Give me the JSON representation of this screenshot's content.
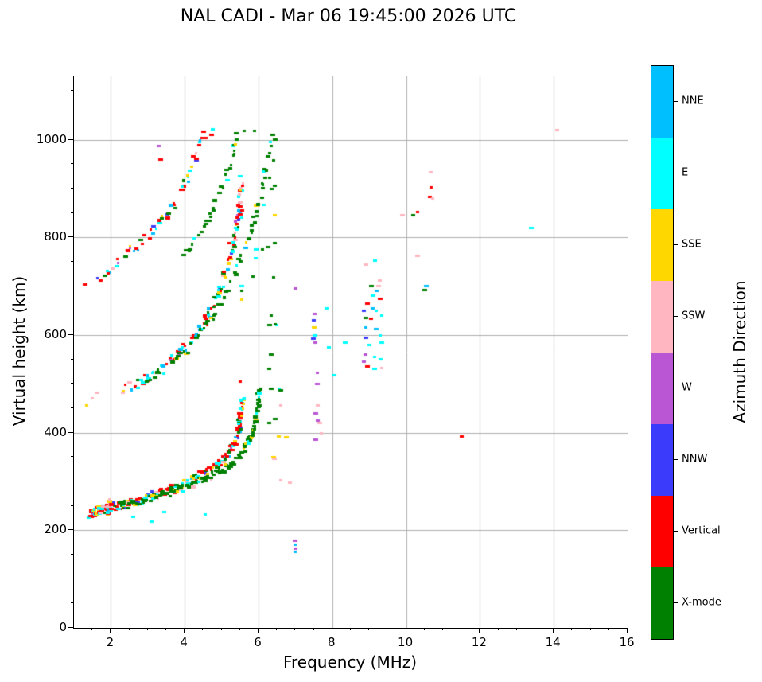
{
  "chart_data": {
    "type": "scatter",
    "title": "NAL CADI - Mar 06 19:45:00 2026 UTC",
    "xlabel": "Frequency (MHz)",
    "ylabel": "Virtual height (km)",
    "xlim": [
      1,
      16
    ],
    "ylim": [
      0,
      1130
    ],
    "xticks": [
      2,
      4,
      6,
      8,
      10,
      12,
      14,
      16
    ],
    "yticks": [
      0,
      200,
      400,
      600,
      800,
      1000
    ],
    "x_minor_step": 0.5,
    "y_minor_step": 50,
    "grid": true,
    "grid_color": "#b0b0b0",
    "background": "#ffffff",
    "colorbar": {
      "label": "Azimuth Direction",
      "categories": [
        {
          "key": "N",
          "label": "NNE",
          "color": "#00bfff"
        },
        {
          "key": "E",
          "label": "E",
          "color": "#00ffff"
        },
        {
          "key": "S",
          "label": "SSE",
          "color": "#ffd700"
        },
        {
          "key": "P",
          "label": "SSW",
          "color": "#ffb6c1"
        },
        {
          "key": "W",
          "label": "W",
          "color": "#ba55d3"
        },
        {
          "key": "B",
          "label": "NNW",
          "color": "#3b3bfc"
        },
        {
          "key": "R",
          "label": "Vertical",
          "color": "#ff0000"
        },
        {
          "key": "G",
          "label": "X-mode",
          "color": "#008000"
        }
      ]
    },
    "traces": [
      {
        "name": "first-hop-o-mode",
        "thickness": 9,
        "step": 2.6,
        "p": 0.85,
        "per": 2.2,
        "colors": {
          "R": 0.3,
          "E": 0.2,
          "S": 0.11,
          "P": 0.1,
          "N": 0.07,
          "B": 0.05,
          "W": 0.02,
          "G": 0.15
        },
        "anchors": [
          [
            1.45,
            237
          ],
          [
            1.7,
            240
          ],
          [
            1.95,
            247
          ],
          [
            2.4,
            252
          ],
          [
            2.8,
            262
          ],
          [
            3.2,
            272
          ],
          [
            3.6,
            283
          ],
          [
            4.0,
            296
          ],
          [
            4.4,
            310
          ],
          [
            4.8,
            328
          ],
          [
            5.1,
            348
          ],
          [
            5.3,
            370
          ],
          [
            5.45,
            402
          ],
          [
            5.52,
            440
          ],
          [
            5.57,
            475
          ]
        ]
      },
      {
        "name": "first-hop-x-mode",
        "thickness": 7,
        "step": 3,
        "p": 0.8,
        "per": 1.8,
        "colors": {
          "G": 0.82,
          "E": 0.08,
          "S": 0.06,
          "P": 0.04
        },
        "anchors": [
          [
            2.2,
            250
          ],
          [
            2.8,
            260
          ],
          [
            3.4,
            272
          ],
          [
            3.9,
            284
          ],
          [
            4.4,
            298
          ],
          [
            4.9,
            318
          ],
          [
            5.3,
            338
          ],
          [
            5.6,
            362
          ],
          [
            5.85,
            398
          ],
          [
            5.98,
            448
          ],
          [
            6.03,
            498
          ]
        ]
      },
      {
        "name": "second-hop-o-mode",
        "thickness": 9,
        "step": 3.2,
        "p": 0.75,
        "per": 1.6,
        "colors": {
          "R": 0.32,
          "E": 0.2,
          "N": 0.09,
          "P": 0.12,
          "S": 0.08,
          "G": 0.12,
          "W": 0.03,
          "B": 0.04
        },
        "anchors": [
          [
            2.35,
            490
          ],
          [
            2.7,
            500
          ],
          [
            3.1,
            518
          ],
          [
            3.5,
            542
          ],
          [
            3.9,
            566
          ],
          [
            4.2,
            590
          ],
          [
            4.5,
            620
          ],
          [
            4.75,
            655
          ],
          [
            4.95,
            690
          ],
          [
            5.15,
            732
          ],
          [
            5.3,
            778
          ],
          [
            5.4,
            822
          ],
          [
            5.5,
            870
          ],
          [
            5.55,
            908
          ]
        ]
      },
      {
        "name": "second-hop-x-mode",
        "thickness": 7,
        "step": 4.5,
        "p": 0.72,
        "per": 1,
        "colors": {
          "G": 0.8,
          "E": 0.08,
          "S": 0.07,
          "N": 0.05
        },
        "anchors": [
          [
            3.0,
            505
          ],
          [
            3.5,
            532
          ],
          [
            4.0,
            562
          ],
          [
            4.4,
            596
          ],
          [
            4.8,
            642
          ],
          [
            5.1,
            682
          ],
          [
            5.4,
            732
          ],
          [
            5.7,
            792
          ],
          [
            5.95,
            852
          ],
          [
            6.15,
            922
          ],
          [
            6.3,
            978
          ],
          [
            6.4,
            1018
          ]
        ]
      },
      {
        "name": "third-hop-o-mode",
        "thickness": 9,
        "step": 4,
        "p": 0.7,
        "per": 1.4,
        "colors": {
          "R": 0.3,
          "N": 0.17,
          "E": 0.18,
          "P": 0.08,
          "S": 0.09,
          "G": 0.08,
          "B": 0.06,
          "W": 0.04
        },
        "anchors": [
          [
            1.5,
            706
          ],
          [
            1.9,
            730
          ],
          [
            2.3,
            756
          ],
          [
            2.7,
            782
          ],
          [
            3.0,
            802
          ],
          [
            3.3,
            826
          ],
          [
            3.6,
            856
          ],
          [
            3.85,
            886
          ],
          [
            4.05,
            916
          ],
          [
            4.2,
            946
          ],
          [
            4.35,
            976
          ],
          [
            4.5,
            1002
          ],
          [
            4.6,
            1016
          ]
        ]
      },
      {
        "name": "third-hop-x-mode",
        "thickness": 6,
        "step": 4.5,
        "p": 0.8,
        "per": 1,
        "colors": {
          "G": 0.88,
          "S": 0.06,
          "E": 0.06
        },
        "anchors": [
          [
            4.0,
            762
          ],
          [
            4.3,
            792
          ],
          [
            4.6,
            832
          ],
          [
            4.85,
            872
          ],
          [
            5.05,
            906
          ],
          [
            5.25,
            952
          ],
          [
            5.35,
            986
          ],
          [
            5.45,
            1016
          ]
        ]
      },
      {
        "name": "start-blob",
        "thickness": 7,
        "step": 1.6,
        "p": 0.9,
        "per": 2.5,
        "colors": {
          "R": 0.28,
          "E": 0.22,
          "S": 0.14,
          "P": 0.1,
          "N": 0.1,
          "B": 0.08,
          "W": 0.03,
          "G": 0.05
        },
        "anchors": [
          [
            1.45,
            233
          ],
          [
            1.62,
            238
          ],
          [
            1.78,
            242
          ]
        ]
      },
      {
        "name": "two-mhz-blob",
        "thickness": 10,
        "step": 1.2,
        "p": 0.95,
        "per": 2.5,
        "colors": {
          "R": 0.28,
          "E": 0.2,
          "S": 0.16,
          "P": 0.14,
          "N": 0.08,
          "B": 0.06,
          "W": 0.03,
          "G": 0.05
        },
        "anchors": [
          [
            1.93,
            240
          ],
          [
            2.0,
            256
          ]
        ]
      }
    ],
    "features": [
      [
        1.35,
        455,
        "S"
      ],
      [
        1.5,
        470,
        "P"
      ],
      [
        1.62,
        482,
        "P"
      ],
      [
        1.3,
        703,
        "R"
      ],
      [
        2.6,
        228,
        "E"
      ],
      [
        3.1,
        218,
        "E"
      ],
      [
        3.45,
        238,
        "E"
      ],
      [
        4.55,
        232,
        "E"
      ],
      [
        3.3,
        987,
        "W"
      ],
      [
        3.35,
        960,
        "R"
      ],
      [
        5.5,
        505,
        "R"
      ],
      [
        5.2,
        789,
        "R"
      ],
      [
        4.73,
        1010,
        "R"
      ],
      [
        4.75,
        1021,
        "E"
      ],
      [
        5.38,
        990,
        "S"
      ],
      [
        5.4,
        1000,
        "G"
      ],
      [
        5.55,
        840,
        "E"
      ],
      [
        5.55,
        855,
        "R"
      ],
      [
        5.57,
        905,
        "R"
      ],
      [
        5.5,
        925,
        "E"
      ],
      [
        5.54,
        690,
        "G"
      ],
      [
        5.54,
        700,
        "E"
      ],
      [
        5.54,
        672,
        "S"
      ],
      [
        5.62,
        1019,
        "G"
      ],
      [
        5.9,
        1019,
        "G"
      ],
      [
        5.85,
        720,
        "G"
      ],
      [
        5.92,
        758,
        "E"
      ],
      [
        5.93,
        776,
        "E"
      ],
      [
        6.1,
        775,
        "G"
      ],
      [
        6.25,
        780,
        "G"
      ],
      [
        6.45,
        788,
        "G"
      ],
      [
        6.3,
        420,
        "G"
      ],
      [
        6.45,
        428,
        "G"
      ],
      [
        6.35,
        490,
        "G"
      ],
      [
        6.3,
        530,
        "G"
      ],
      [
        6.35,
        560,
        "G"
      ],
      [
        6.3,
        620,
        "G"
      ],
      [
        6.35,
        640,
        "G"
      ],
      [
        6.4,
        718,
        "G"
      ],
      [
        6.35,
        900,
        "G"
      ],
      [
        6.45,
        906,
        "G"
      ],
      [
        6.3,
        922,
        "G"
      ],
      [
        6.4,
        958,
        "G"
      ],
      [
        6.45,
        1000,
        "G"
      ],
      [
        6.45,
        845,
        "S"
      ],
      [
        6.15,
        867,
        "E"
      ],
      [
        6.55,
        392,
        "S"
      ],
      [
        6.75,
        390,
        "S"
      ],
      [
        6.4,
        350,
        "S"
      ],
      [
        6.44,
        347,
        "P"
      ],
      [
        6.6,
        302,
        "P"
      ],
      [
        6.85,
        298,
        "P"
      ],
      [
        6.6,
        455,
        "P"
      ],
      [
        6.55,
        490,
        "E"
      ],
      [
        6.6,
        487,
        "G"
      ],
      [
        6.5,
        620,
        "E"
      ],
      [
        6.45,
        622,
        "G"
      ],
      [
        7.0,
        695,
        "W"
      ],
      [
        7.55,
        585,
        "W"
      ],
      [
        7.6,
        522,
        "W"
      ],
      [
        7.6,
        500,
        "W"
      ],
      [
        7.55,
        440,
        "W"
      ],
      [
        7.6,
        425,
        "W"
      ],
      [
        7.55,
        385,
        "W"
      ],
      [
        7.6,
        455,
        "P"
      ],
      [
        7.65,
        420,
        "P"
      ],
      [
        7.7,
        398,
        "P"
      ],
      [
        7.5,
        630,
        "B"
      ],
      [
        7.52,
        644,
        "W"
      ],
      [
        7.5,
        615,
        "S"
      ],
      [
        7.52,
        600,
        "E"
      ],
      [
        7.48,
        592,
        "B"
      ],
      [
        7.9,
        575,
        "E"
      ],
      [
        8.35,
        585,
        "E"
      ],
      [
        8.05,
        518,
        "E"
      ],
      [
        7.85,
        655,
        "E"
      ],
      [
        7.0,
        178,
        "W"
      ],
      [
        7.0,
        170,
        "N"
      ],
      [
        7.0,
        163,
        "W"
      ],
      [
        7.0,
        156,
        "N"
      ],
      [
        8.9,
        745,
        "P"
      ],
      [
        9.15,
        752,
        "E"
      ],
      [
        9.05,
        700,
        "G"
      ],
      [
        9.25,
        700,
        "P"
      ],
      [
        9.28,
        712,
        "P"
      ],
      [
        9.3,
        675,
        "R"
      ],
      [
        9.1,
        655,
        "N"
      ],
      [
        8.85,
        650,
        "B"
      ],
      [
        8.9,
        635,
        "G"
      ],
      [
        9.05,
        633,
        "R"
      ],
      [
        9.2,
        650,
        "E"
      ],
      [
        9.35,
        640,
        "E"
      ],
      [
        8.9,
        615,
        "N"
      ],
      [
        9.3,
        600,
        "E"
      ],
      [
        9.35,
        585,
        "E"
      ],
      [
        8.9,
        595,
        "B"
      ],
      [
        8.9,
        560,
        "W"
      ],
      [
        9.15,
        555,
        "E"
      ],
      [
        9.3,
        550,
        "E"
      ],
      [
        8.85,
        545,
        "W"
      ],
      [
        8.95,
        535,
        "R"
      ],
      [
        9.15,
        530,
        "E"
      ],
      [
        9.35,
        533,
        "P"
      ],
      [
        9.2,
        612,
        "N"
      ],
      [
        9.0,
        580,
        "E"
      ],
      [
        9.1,
        680,
        "E"
      ],
      [
        9.2,
        690,
        "N"
      ],
      [
        8.95,
        665,
        "R"
      ],
      [
        10.3,
        852,
        "R"
      ],
      [
        9.9,
        845,
        "P"
      ],
      [
        10.2,
        845,
        "G"
      ],
      [
        10.67,
        933,
        "P"
      ],
      [
        10.67,
        902,
        "R"
      ],
      [
        10.65,
        883,
        "R"
      ],
      [
        10.72,
        880,
        "P"
      ],
      [
        10.3,
        763,
        "P"
      ],
      [
        10.5,
        692,
        "G"
      ],
      [
        10.55,
        700,
        "N"
      ],
      [
        11.5,
        392,
        "R"
      ],
      [
        13.4,
        820,
        "E"
      ],
      [
        14.1,
        1020,
        "P"
      ]
    ]
  }
}
